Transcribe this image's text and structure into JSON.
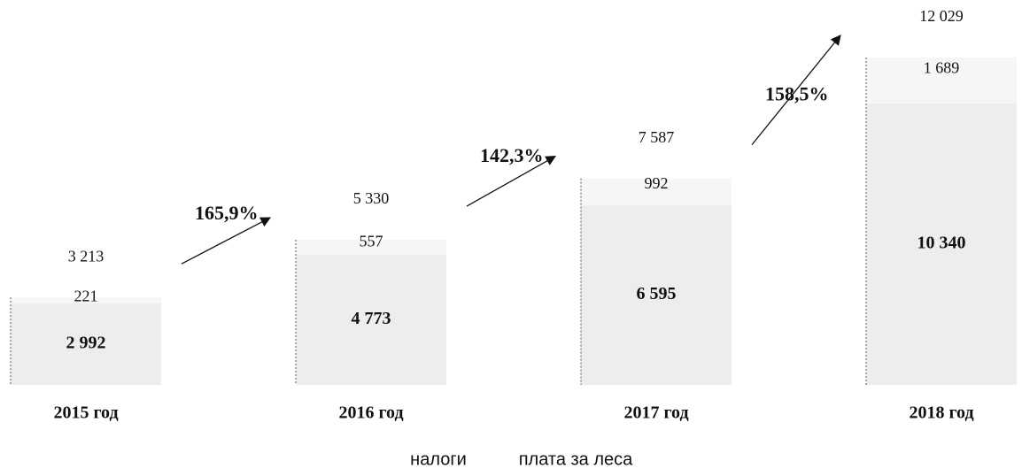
{
  "chart_data": {
    "type": "bar",
    "stacked": true,
    "categories": [
      "2015 год",
      "2016 год",
      "2017 год",
      "2018 год"
    ],
    "series": [
      {
        "name": "налоги",
        "color": "#ededed",
        "values": [
          2992,
          4773,
          6595,
          10340
        ],
        "value_labels": [
          "2 992",
          "4 773",
          "6 595",
          "10 340"
        ]
      },
      {
        "name": "плата за леса",
        "color": "#f6f6f6",
        "values": [
          221,
          557,
          992,
          1689
        ],
        "value_labels": [
          "221",
          "557",
          "992",
          "1 689"
        ]
      }
    ],
    "totals": [
      3213,
      5330,
      7587,
      12029
    ],
    "total_labels": [
      "3 213",
      "5 330",
      "7 587",
      "12 029"
    ],
    "annotations": [
      "165,9%",
      "142,3%",
      "158,5%"
    ]
  }
}
